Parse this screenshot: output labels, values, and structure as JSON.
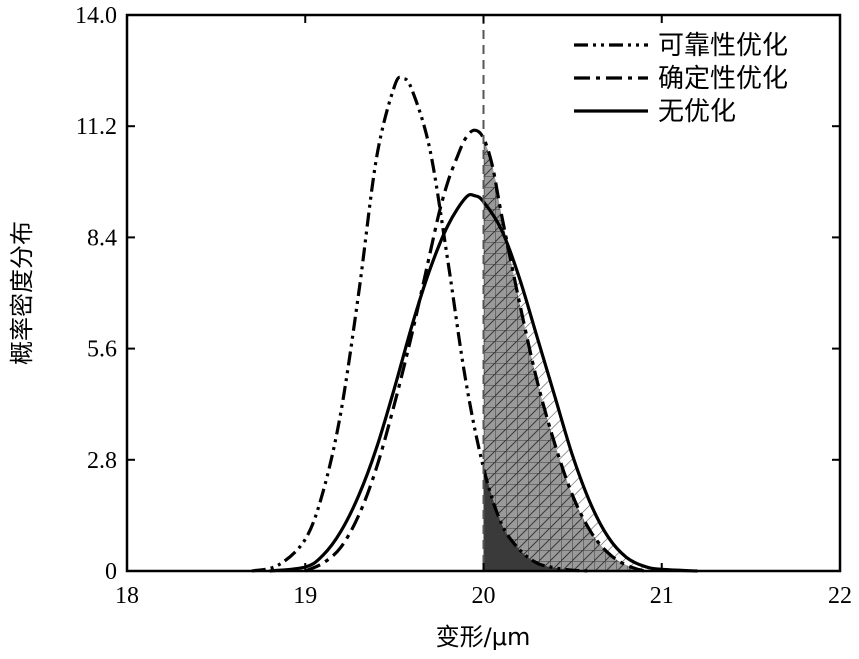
{
  "chart_data": {
    "type": "line",
    "xlabel": "变形/μm",
    "ylabel": "概率密度分布",
    "xlim": [
      18,
      22
    ],
    "ylim": [
      0,
      14
    ],
    "x_ticks": [
      18,
      19,
      20,
      21,
      22
    ],
    "y_ticks": [
      0,
      2.8,
      5.6,
      8.4,
      11.2,
      14.0
    ],
    "x_tick_labels": [
      "18",
      "19",
      "20",
      "21",
      "22"
    ],
    "y_tick_labels": [
      "0",
      "2.8",
      "5.6",
      "8.4",
      "11.2",
      "14.0"
    ],
    "threshold_x": 20.0,
    "grid": false,
    "legend_position": "top-right",
    "series": [
      {
        "name": "可靠性优化",
        "line_style": "dash-dot-dot",
        "fill_right_of_threshold": "dark",
        "x": [
          18.7,
          18.85,
          19.0,
          19.1,
          19.2,
          19.3,
          19.4,
          19.5,
          19.55,
          19.6,
          19.7,
          19.8,
          19.9,
          20.0,
          20.1,
          20.2,
          20.3,
          20.4,
          20.5,
          20.6
        ],
        "y": [
          0.0,
          0.15,
          0.8,
          2.0,
          4.0,
          7.0,
          10.4,
          12.2,
          12.4,
          12.1,
          10.6,
          7.8,
          4.8,
          2.6,
          1.2,
          0.55,
          0.2,
          0.08,
          0.02,
          0.0
        ]
      },
      {
        "name": "确定性优化",
        "line_style": "dash-dot",
        "fill_right_of_threshold": "crosshatch",
        "x": [
          19.0,
          19.1,
          19.2,
          19.3,
          19.4,
          19.5,
          19.6,
          19.7,
          19.75,
          19.8,
          19.85,
          19.9,
          19.95,
          20.0,
          20.05,
          20.1,
          20.2,
          20.3,
          20.4,
          20.5,
          20.6,
          20.7,
          20.8,
          20.9
        ],
        "y": [
          0.0,
          0.2,
          0.6,
          1.4,
          2.6,
          4.2,
          6.0,
          8.0,
          9.0,
          9.8,
          10.4,
          10.9,
          11.1,
          10.9,
          10.2,
          9.0,
          6.8,
          4.8,
          3.2,
          1.9,
          1.0,
          0.45,
          0.15,
          0.0
        ]
      },
      {
        "name": "无优化",
        "line_style": "solid",
        "fill_right_of_threshold": "diagonal",
        "x": [
          18.8,
          19.0,
          19.1,
          19.2,
          19.3,
          19.4,
          19.5,
          19.6,
          19.7,
          19.8,
          19.9,
          19.95,
          20.0,
          20.1,
          20.2,
          20.3,
          20.4,
          20.5,
          20.6,
          20.7,
          20.8,
          20.9,
          21.0,
          21.2
        ],
        "y": [
          0.0,
          0.1,
          0.4,
          1.0,
          1.9,
          3.1,
          4.6,
          6.2,
          7.6,
          8.7,
          9.4,
          9.45,
          9.3,
          8.6,
          7.4,
          5.9,
          4.4,
          2.9,
          1.7,
          0.85,
          0.35,
          0.12,
          0.04,
          0.0
        ]
      }
    ]
  }
}
